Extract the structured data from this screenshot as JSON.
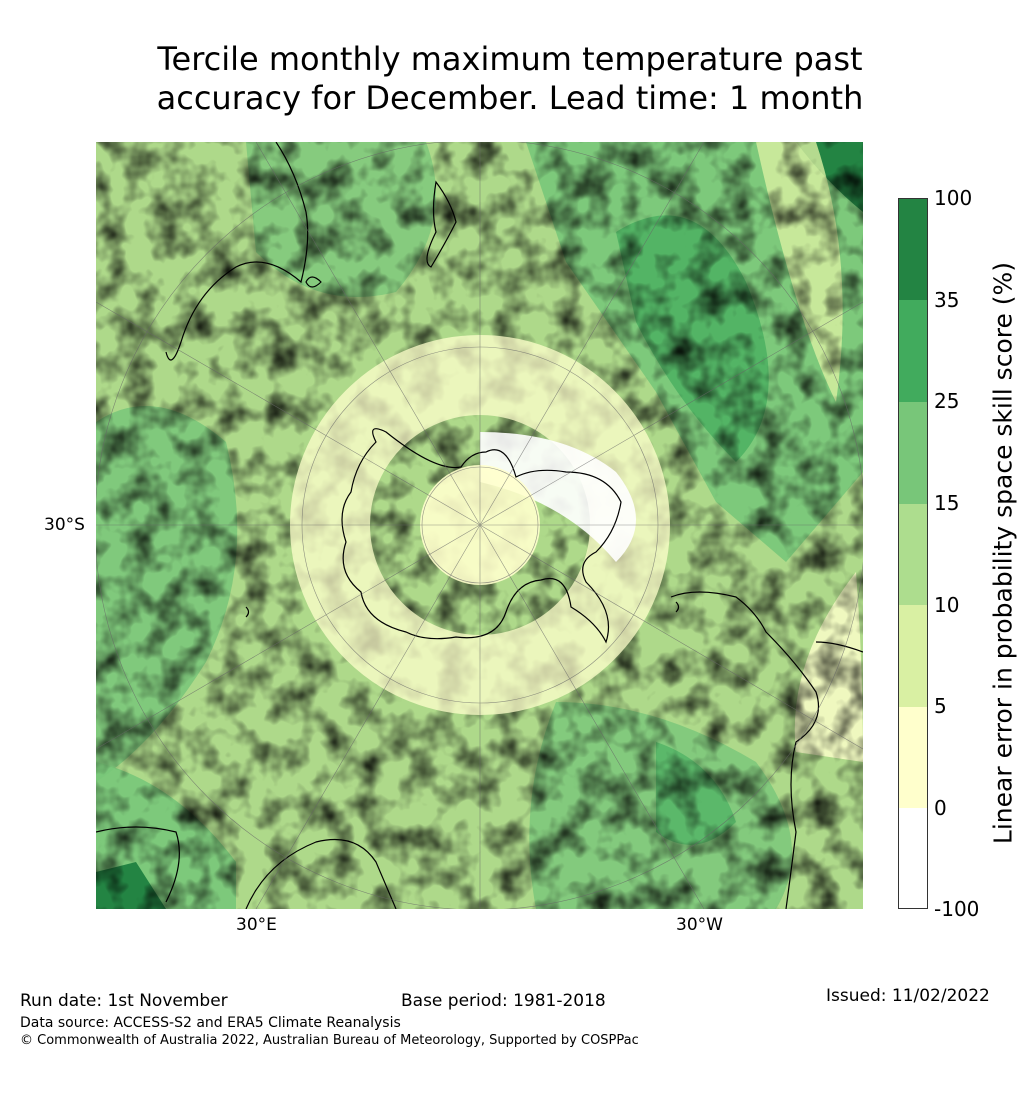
{
  "title": {
    "line1": "Tercile monthly maximum temperature past",
    "line2": "accuracy for December. Lead time: 1 month"
  },
  "map": {
    "projection": "south-polar-stereographic",
    "graticule_labels": {
      "left": "30°S",
      "bottom_left": "30°E",
      "bottom_right": "30°W"
    },
    "colors": {
      "land_outline": "#000000",
      "graticule": "#666666"
    }
  },
  "colorbar": {
    "label": "Linear error in probability space skill score (%)",
    "ticks": [
      "100",
      "35",
      "25",
      "15",
      "10",
      "5",
      "0",
      "-100"
    ],
    "bins": [
      {
        "range": "-100 to 0",
        "color": "#ffffff"
      },
      {
        "range": "0 to 5",
        "color": "#ffffcc"
      },
      {
        "range": "5 to 10",
        "color": "#d9f0a3"
      },
      {
        "range": "10 to 15",
        "color": "#addd8e"
      },
      {
        "range": "15 to 25",
        "color": "#78c679"
      },
      {
        "range": "25 to 35",
        "color": "#41ab5d"
      },
      {
        "range": "35 to 100",
        "color": "#238443"
      }
    ]
  },
  "footer": {
    "run_date": "Run date: 1st November",
    "base_period": "Base period: 1981-2018",
    "issued": "Issued: 11/02/2022",
    "data_source": "Data source: ACCESS-S2 and ERA5 Climate Reanalysis",
    "copyright": "© Commonwealth of Australia 2022, Australian Bureau of Meteorology, Supported by COSPPac"
  }
}
